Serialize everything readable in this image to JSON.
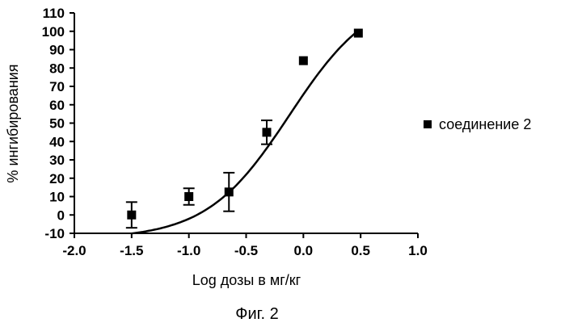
{
  "chart_data": {
    "type": "scatter",
    "title": "",
    "xlabel": "Log дозы в мг/кг",
    "ylabel": "% ингибирования",
    "xlim": [
      -2.0,
      1.0
    ],
    "ylim": [
      -10,
      110
    ],
    "x_ticks": [
      "-2.0",
      "-1.5",
      "-1.0",
      "-0.5",
      "0.0",
      "0.5",
      "1.0"
    ],
    "y_ticks": [
      "-10",
      "0",
      "10",
      "20",
      "30",
      "40",
      "50",
      "60",
      "70",
      "80",
      "90",
      "100",
      "110"
    ],
    "grid": false,
    "legend_position": "right",
    "series": [
      {
        "name": "соединение 2",
        "marker": "square",
        "color": "#000000",
        "points": [
          {
            "x": -1.5,
            "y": 0,
            "err": 7
          },
          {
            "x": -1.0,
            "y": 10,
            "err": 4.5
          },
          {
            "x": -0.65,
            "y": 12.5,
            "err": 10.5
          },
          {
            "x": -0.32,
            "y": 45,
            "err": 6.5
          },
          {
            "x": 0.0,
            "y": 84
          },
          {
            "x": 0.48,
            "y": 99
          }
        ]
      }
    ],
    "fit_curve": {
      "type": "sigmoid",
      "color": "#000000",
      "x_range": [
        -1.5,
        0.48
      ],
      "bottom": -13,
      "top": 122,
      "logEC50": -0.12,
      "hill": 1.2
    }
  },
  "caption": "Фиг. 2"
}
